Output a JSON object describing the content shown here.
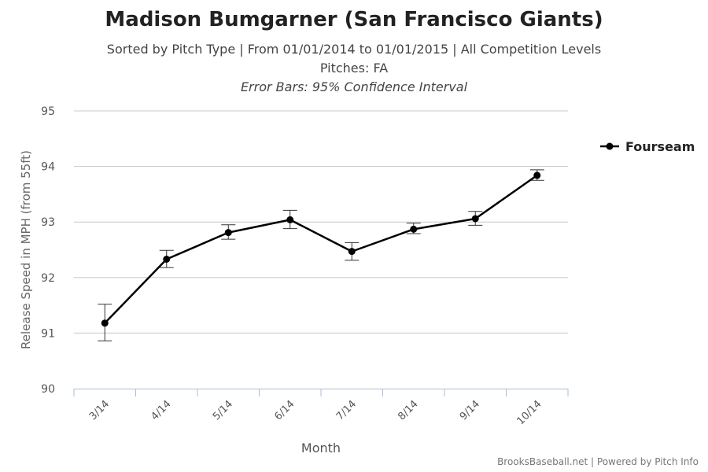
{
  "title": "Madison Bumgarner (San Francisco Giants)",
  "subtitle_1": "Sorted by Pitch Type | From 01/01/2014 to 01/01/2015 | All Competition Levels",
  "subtitle_2": "Pitches: FA",
  "subtitle_3": "Error Bars: 95% Confidence Interval",
  "credits": "BrooksBaseball.net | Powered by Pitch Info",
  "chart_data": {
    "type": "line",
    "title": "Madison Bumgarner (San Francisco Giants)",
    "xlabel": "Month",
    "ylabel": "Release Speed in MPH (from 55ft)",
    "ylim": [
      90,
      95
    ],
    "yticks": [
      90,
      91,
      92,
      93,
      94,
      95
    ],
    "categories": [
      "3/14",
      "4/14",
      "5/14",
      "6/14",
      "7/14",
      "8/14",
      "9/14",
      "10/14"
    ],
    "legend_position": "top-right",
    "grid": true,
    "series": [
      {
        "name": "Fourseam",
        "color": "#000000",
        "values": [
          91.18,
          92.33,
          92.81,
          93.04,
          92.47,
          92.87,
          93.06,
          93.84
        ],
        "error_low": [
          90.86,
          92.18,
          92.69,
          92.88,
          92.31,
          92.79,
          92.94,
          93.75
        ],
        "error_high": [
          91.52,
          92.49,
          92.95,
          93.21,
          92.63,
          92.98,
          93.19,
          93.94
        ]
      }
    ]
  }
}
